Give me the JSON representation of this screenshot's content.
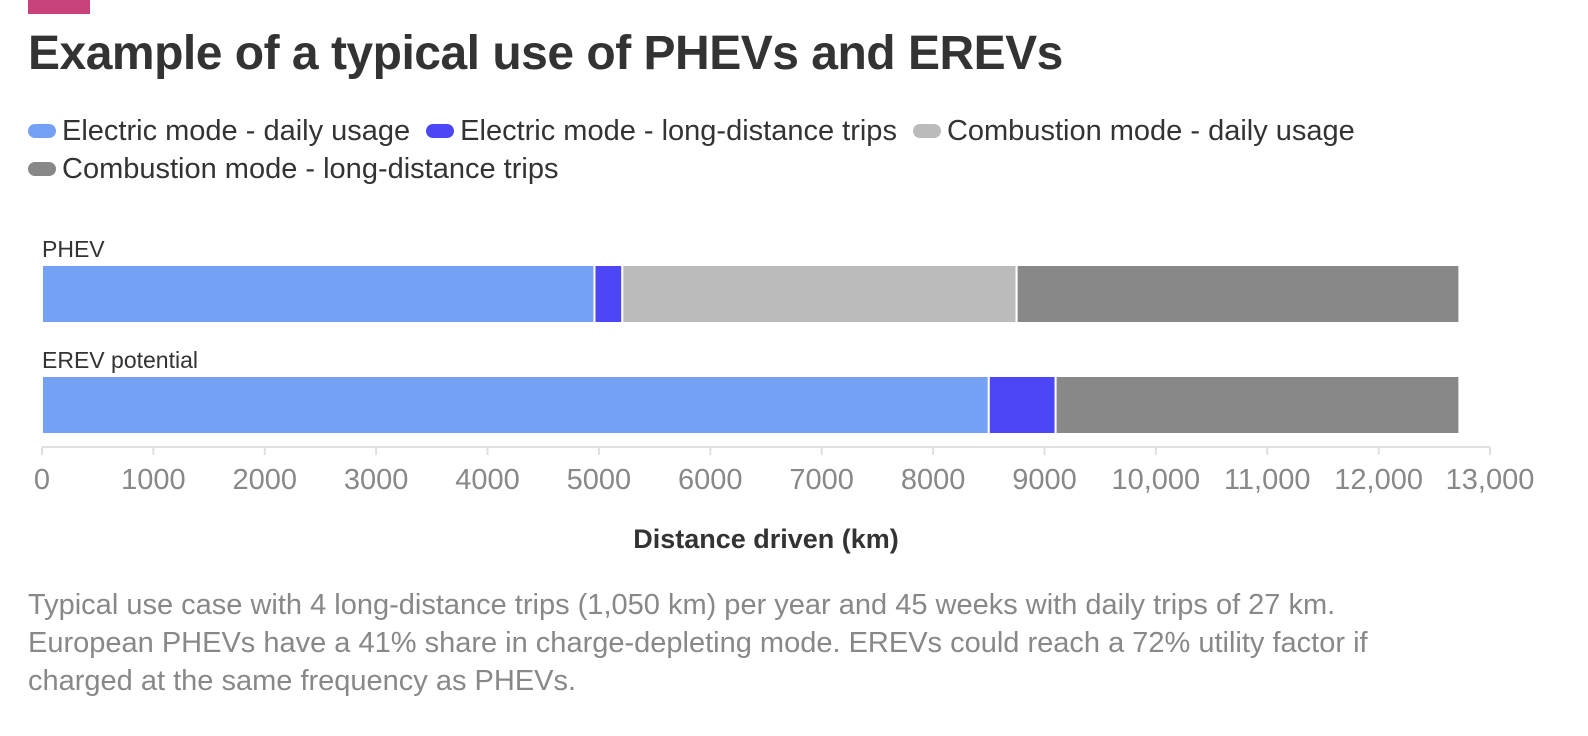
{
  "header": {
    "title": "Example of a typical use of PHEVs and EREVs",
    "accent_color": "#c8427c"
  },
  "legend": [
    {
      "label": "Electric mode - daily usage",
      "color": "#74a1f4"
    },
    {
      "label": "Electric mode - long-distance trips",
      "color": "#4c46f7"
    },
    {
      "label": "Combustion mode - daily usage",
      "color": "#bbbbbb"
    },
    {
      "label": "Combustion mode - long-distance trips",
      "color": "#888888"
    }
  ],
  "chart_data": {
    "type": "bar",
    "orientation": "horizontal",
    "stacked": true,
    "categories": [
      "PHEV",
      "EREV potential"
    ],
    "series": [
      {
        "name": "Electric mode - daily usage",
        "values": [
          4960,
          8500
        ],
        "color": "#74a1f4"
      },
      {
        "name": "Electric mode - long-distance trips",
        "values": [
          250,
          600
        ],
        "color": "#4c46f7"
      },
      {
        "name": "Combustion mode - daily usage",
        "values": [
          3540,
          0
        ],
        "color": "#bbbbbb"
      },
      {
        "name": "Combustion mode - long-distance trips",
        "values": [
          3975,
          3625
        ],
        "color": "#888888"
      }
    ],
    "xlabel": "Distance driven (km)",
    "xlim": [
      0,
      13000
    ],
    "xticks": [
      0,
      1000,
      2000,
      3000,
      4000,
      5000,
      6000,
      7000,
      8000,
      9000,
      10000,
      11000,
      12000,
      13000
    ],
    "xtick_labels": [
      "0",
      "1000",
      "2000",
      "3000",
      "4000",
      "5000",
      "6000",
      "7000",
      "8000",
      "9000",
      "10,000",
      "11,000",
      "12,000",
      "13,000"
    ],
    "legend_position": "top",
    "grid": false
  },
  "caption": "Typical use case with 4 long-distance trips (1,050 km) per year and 45 weeks with daily trips of 27 km. European PHEVs have a 41% share in charge-depleting mode. EREVs could reach a 72% utility factor if charged at the same frequency as PHEVs."
}
